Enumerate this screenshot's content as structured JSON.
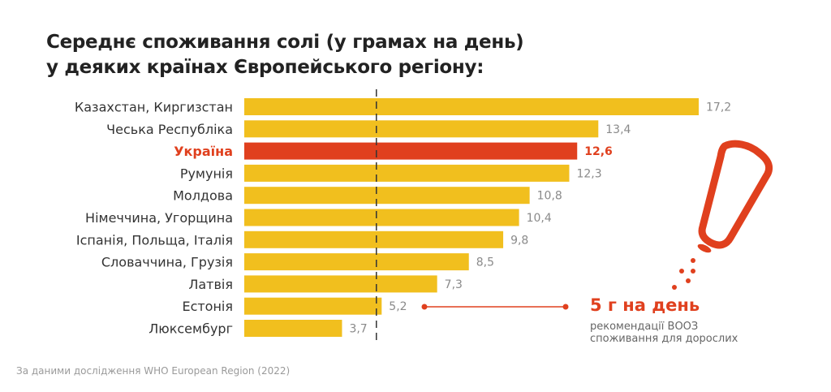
{
  "title": {
    "line1": "Середнє споживання солі (у грамах на день)",
    "line2": "у деяких країнах Європейського регіону:"
  },
  "colors": {
    "bar": "#f1bf1e",
    "highlight": "#e0401e",
    "label": "#333333",
    "value": "#8a8a8a",
    "reference_line": "#333333"
  },
  "chart_data": {
    "type": "bar",
    "orientation": "horizontal",
    "title": "Середнє споживання солі (у грамах на день) у деяких країнах Європейського регіону:",
    "xlabel": "",
    "ylabel": "",
    "unit": "г на день",
    "xlim": [
      0,
      17.2
    ],
    "categories": [
      "Казахстан, Киргизстан",
      "Чеська Республіка",
      "Україна",
      "Румунія",
      "Молдова",
      "Німеччина, Угорщина",
      "Іспанія, Польща, Італія",
      "Словаччина, Грузія",
      "Латвія",
      "Естонія",
      "Люксембург"
    ],
    "values": [
      17.2,
      13.4,
      12.6,
      12.3,
      10.8,
      10.4,
      9.8,
      8.5,
      7.3,
      5.2,
      3.7
    ],
    "value_labels": [
      "17,2",
      "13,4",
      "12,6",
      "12,3",
      "10,8",
      "10,4",
      "9,8",
      "8,5",
      "7,3",
      "5,2",
      "3,7"
    ],
    "highlight_index": 2,
    "reference_line": {
      "value": 5,
      "style": "dashed",
      "label": "5 г на день"
    },
    "grid": false,
    "legend": "none"
  },
  "annotation": {
    "main": "5 г на день",
    "sub_line1": "рекомендації ВООЗ",
    "sub_line2": "споживання для дорослих",
    "icon": "salt-shaker-icon"
  },
  "footnote": "За даними дослідження WHO European Region (2022)"
}
